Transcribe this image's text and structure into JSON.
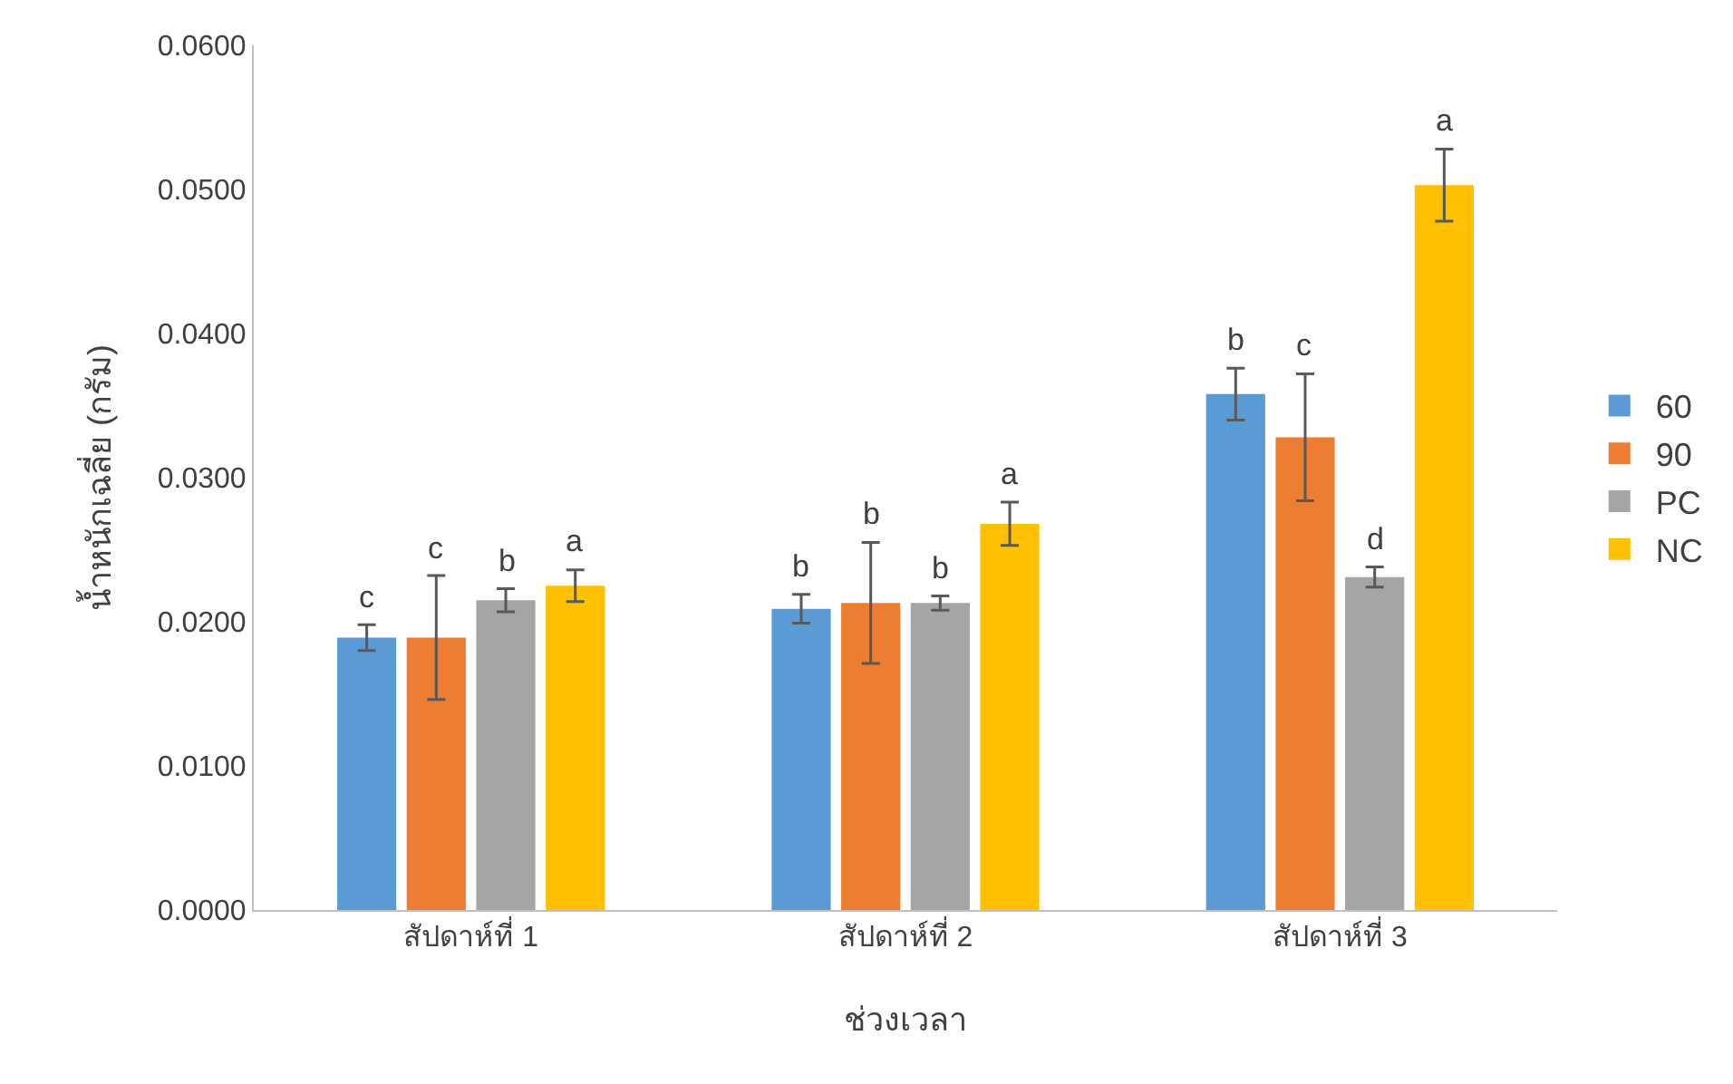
{
  "chart_data": {
    "type": "bar",
    "xlabel": "ช่วงเวลา",
    "ylabel": "น้ำหนักเฉลี่ย (กรัม)",
    "categories": [
      "สัปดาห์ที่ 1",
      "สัปดาห์ที่ 2",
      "สัปดาห์ที่ 3"
    ],
    "series": [
      {
        "name": "60",
        "color": "#5b9bd5",
        "values": [
          0.0189,
          0.0209,
          0.0358
        ],
        "errors": [
          0.0009,
          0.001,
          0.0018
        ],
        "value_labels": [
          "c",
          "b",
          "b"
        ]
      },
      {
        "name": "90",
        "color": "#ed7d31",
        "values": [
          0.0189,
          0.0213,
          0.0328
        ],
        "errors": [
          0.0043,
          0.0042,
          0.0044
        ],
        "value_labels": [
          "c",
          "b",
          "c"
        ]
      },
      {
        "name": "PC",
        "color": "#a5a5a5",
        "values": [
          0.0215,
          0.0213,
          0.0231
        ],
        "errors": [
          0.0008,
          0.0005,
          0.0007
        ],
        "value_labels": [
          "b",
          "b",
          "d"
        ]
      },
      {
        "name": "NC",
        "color": "#ffc000",
        "values": [
          0.0225,
          0.0268,
          0.0503
        ],
        "errors": [
          0.0011,
          0.0015,
          0.0025
        ],
        "value_labels": [
          "a",
          "a",
          "a"
        ]
      }
    ],
    "ylim": [
      0,
      0.06
    ],
    "yticks": [
      {
        "value": 0,
        "label": "0.0000"
      },
      {
        "value": 0.01,
        "label": "0.0100"
      },
      {
        "value": 0.02,
        "label": "0.0200"
      },
      {
        "value": 0.03,
        "label": "0.0300"
      },
      {
        "value": 0.04,
        "label": "0.0400"
      },
      {
        "value": 0.05,
        "label": "0.0500"
      },
      {
        "value": 0.06,
        "label": "0.0600"
      }
    ],
    "grid": false,
    "legend": "right"
  }
}
